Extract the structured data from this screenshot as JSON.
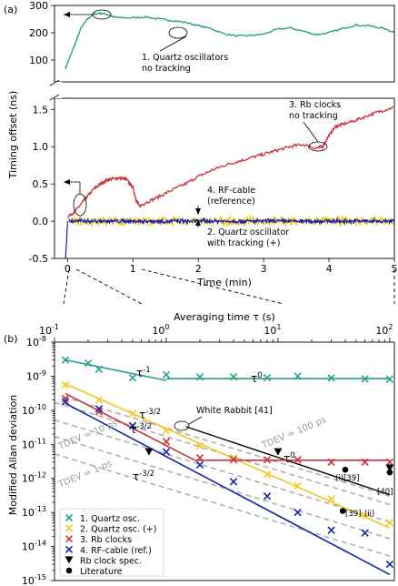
{
  "colors": {
    "quartz": "#2a9d8f",
    "quartz_track": "#f2c81f",
    "rb": "#c8343b",
    "rf": "#1523a8",
    "gray": "#b0b0b0",
    "black": "#000000"
  },
  "chart_data": [
    {
      "type": "line",
      "panel_label": "(a)",
      "xlabel": "Time (min)",
      "ylabel": "Timing offset (ns)",
      "xlim": [
        -0.2,
        5
      ],
      "xticks": [
        "0",
        "1",
        "2",
        "3",
        "4",
        "5"
      ],
      "upper": {
        "ylim": [
          20,
          300
        ],
        "yticks": [
          "100",
          "200",
          "300"
        ],
        "series": [
          {
            "key": "quartz",
            "x": [
              -0.03,
              0.0,
              0.1,
              0.2,
              0.3,
              0.4,
              0.5,
              0.6,
              0.7,
              0.8,
              1.0,
              1.2,
              1.4,
              1.6,
              1.8,
              2.0,
              2.2,
              2.4,
              2.6,
              2.8,
              3.0,
              3.2,
              3.4,
              3.6,
              3.8,
              4.0,
              4.2,
              4.4,
              4.6,
              4.8,
              5.0
            ],
            "y": [
              70,
              90,
              150,
              215,
              250,
              268,
              272,
              268,
              258,
              255,
              255,
              258,
              250,
              245,
              238,
              226,
              215,
              196,
              188,
              190,
              195,
              212,
              218,
              206,
              193,
              200,
              215,
              228,
              226,
              218,
              202
            ]
          }
        ]
      },
      "lower": {
        "ylim": [
          -0.5,
          1.65
        ],
        "yticks": [
          "-0.5",
          "0.0",
          "0.5",
          "1.0",
          "1.5"
        ],
        "series": [
          {
            "key": "rb",
            "x": [
              0.0,
              0.1,
              0.2,
              0.3,
              0.4,
              0.5,
              0.6,
              0.7,
              0.8,
              0.9,
              1.0,
              1.05,
              1.1,
              1.2,
              1.4,
              1.6,
              1.8,
              2.0,
              2.2,
              2.4,
              2.6,
              2.8,
              3.0,
              3.2,
              3.4,
              3.6,
              3.8,
              3.9,
              4.0,
              4.1,
              4.2,
              4.4,
              4.6,
              4.8,
              5.0
            ],
            "y": [
              0.06,
              0.12,
              0.22,
              0.33,
              0.43,
              0.5,
              0.55,
              0.57,
              0.58,
              0.56,
              0.45,
              0.28,
              0.2,
              0.25,
              0.33,
              0.42,
              0.5,
              0.6,
              0.68,
              0.75,
              0.8,
              0.85,
              0.9,
              0.95,
              1.0,
              1.03,
              0.98,
              1.0,
              1.15,
              1.27,
              1.3,
              1.35,
              1.42,
              1.48,
              1.53
            ]
          },
          {
            "key": "quartz_track",
            "x": [
              0,
              5
            ],
            "y": [
              0.0,
              0.0
            ],
            "noise": 0.07
          },
          {
            "key": "rf",
            "x": [
              0,
              5
            ],
            "y": [
              0.0,
              0.0
            ],
            "noise": 0.03
          }
        ]
      },
      "annotations": {
        "a1": [
          "1. Quartz oscillators",
          "no tracking"
        ],
        "a3": [
          "3. Rb clocks",
          "no tracking"
        ],
        "a4": [
          "4. RF-cable",
          "(reference)"
        ],
        "a2": [
          "2. Quartz oscillator",
          "with tracking (+)"
        ]
      }
    },
    {
      "type": "line",
      "panel_label": "(b)",
      "xlabel": "Averaging time τ (s)",
      "ylabel": "Modified Allan deviation",
      "xscale": "log",
      "yscale": "log",
      "xlim": [
        0.1,
        110
      ],
      "ylim": [
        1e-15,
        1e-08
      ],
      "xticks": [
        {
          "v": 0.1,
          "e": "-1"
        },
        {
          "v": 1,
          "e": "0"
        },
        {
          "v": 10,
          "e": "1"
        },
        {
          "v": 100,
          "e": "2"
        }
      ],
      "yticks": [
        {
          "v": 1e-08,
          "e": "-8"
        },
        {
          "v": 1e-09,
          "e": "-9"
        },
        {
          "v": 1e-10,
          "e": "-10"
        },
        {
          "v": 1e-11,
          "e": "-11"
        },
        {
          "v": 1e-12,
          "e": "-12"
        },
        {
          "v": 1e-13,
          "e": "-13"
        },
        {
          "v": 1e-14,
          "e": "-14"
        },
        {
          "v": 1e-15,
          "e": "-15"
        }
      ],
      "series": [
        {
          "key": "quartz",
          "x": [
            0.125,
            0.2,
            0.25,
            0.5,
            1,
            2,
            4,
            8,
            15,
            30,
            60,
            100
          ],
          "y": [
            3e-09,
            2.4e-09,
            1.6e-09,
            9e-10,
            1.1e-09,
            9.5e-10,
            9.5e-10,
            9e-10,
            1e-09,
            8.8e-10,
            8.3e-10,
            8.2e-10
          ],
          "fit": [
            {
              "x": [
                0.125,
                1
              ],
              "y": [
                3e-09,
                7.5e-10
              ]
            },
            {
              "x": [
                1,
                100
              ],
              "y": [
                8.5e-10,
                8.5e-10
              ]
            }
          ]
        },
        {
          "key": "quartz_track",
          "x": [
            0.125,
            0.25,
            0.5,
            1,
            2,
            4,
            8,
            15,
            30,
            60,
            100
          ],
          "y": [
            5.5e-10,
            2e-10,
            8e-11,
            2.5e-11,
            9e-12,
            4e-12,
            1.3e-12,
            6e-13,
            2.5e-13,
            8e-14,
            5e-14
          ],
          "fit": [
            {
              "x": [
                0.125,
                100
              ],
              "y": [
                6e-10,
                3.5e-14
              ]
            }
          ]
        },
        {
          "key": "rb",
          "x": [
            0.125,
            0.25,
            0.5,
            1,
            2,
            4,
            8,
            15,
            30,
            60,
            100
          ],
          "y": [
            2.2e-10,
            9e-11,
            3.5e-11,
            1.2e-11,
            4e-12,
            3.5e-12,
            3.5e-12,
            3.5e-12,
            3e-12,
            3e-12,
            3e-12
          ],
          "fit": [
            {
              "x": [
                0.125,
                1.8
              ],
              "y": [
                3.1e-10,
                3.4e-12
              ]
            },
            {
              "x": [
                1.8,
                100
              ],
              "y": [
                3.4e-12,
                3.4e-12
              ]
            }
          ]
        },
        {
          "key": "rf",
          "x": [
            0.125,
            0.25,
            0.5,
            1,
            2,
            4,
            8,
            15,
            30,
            60,
            100
          ],
          "y": [
            1.8e-10,
            1.1e-10,
            3.5e-11,
            6e-12,
            2.5e-12,
            8e-13,
            3e-13,
            1e-13,
            3e-14,
            2.5e-14,
            3e-15
          ],
          "fit": [
            {
              "x": [
                0.125,
                100
              ],
              "y": [
                1.6e-10,
                1.5e-15
              ]
            }
          ]
        }
      ],
      "white_rabbit": {
        "x": [
          1.5,
          100
        ],
        "y": [
          3.3e-11,
          3.3e-13
        ]
      },
      "tdev_lines": [
        {
          "label": "TDEV = 100 ps",
          "x": [
            0.12,
            100
          ],
          "y": [
            2.5e-10,
            3e-13
          ]
        },
        {
          "label": "TDEV = 10 ps",
          "x": [
            0.1,
            100
          ],
          "y": [
            1.7e-10,
            1.7e-13
          ]
        },
        {
          "label": "",
          "x": [
            0.1,
            100
          ],
          "y": [
            5.2e-11,
            5.2e-14
          ]
        },
        {
          "label": "TDEV = 1 ps",
          "x": [
            0.1,
            100
          ],
          "y": [
            1.7e-11,
            1.7e-14
          ]
        },
        {
          "label": "",
          "x": [
            0.1,
            100
          ],
          "y": [
            5.2e-12,
            5.2e-15
          ]
        }
      ],
      "rb_spec": [
        {
          "x": 0.7,
          "y": 6e-12
        },
        {
          "x": 10,
          "y": 6e-12
        },
        {
          "x": 100,
          "y": 2e-12
        }
      ],
      "literature": [
        {
          "x": 40,
          "y": 1.8e-12
        },
        {
          "x": 100,
          "y": 1.5e-12
        },
        {
          "x": 38,
          "y": 1.1e-13
        }
      ],
      "fit_labels": {
        "q1": "τ",
        "q1_exp": "-1",
        "q2": "τ",
        "q2_exp": "0",
        "t1": "τ",
        "t1_exp": "-3/2",
        "r1": "τ",
        "r1_exp": "-3/2",
        "r2": "τ",
        "r2_exp": "0",
        "f1": "τ",
        "f1_exp": "-3/2"
      },
      "point_labels": {
        "wr": "White Rabbit [41]",
        "l1": "(i)[39]",
        "l2": "[40]",
        "l3": "[39]",
        "l3b": "(ii)"
      },
      "legend": [
        {
          "key": "quartz",
          "marker": "x",
          "label": "1. Quartz osc."
        },
        {
          "key": "quartz_track",
          "marker": "x",
          "label": "2. Quartz osc. (+)"
        },
        {
          "key": "rb",
          "marker": "x",
          "label": "3. Rb clocks"
        },
        {
          "key": "rf",
          "marker": "x",
          "label": "4. RF-cable (ref.)"
        },
        {
          "key": "black",
          "marker": "tri",
          "label": "Rb clock spec."
        },
        {
          "key": "black",
          "marker": "dot",
          "label": "Literature"
        }
      ]
    }
  ]
}
